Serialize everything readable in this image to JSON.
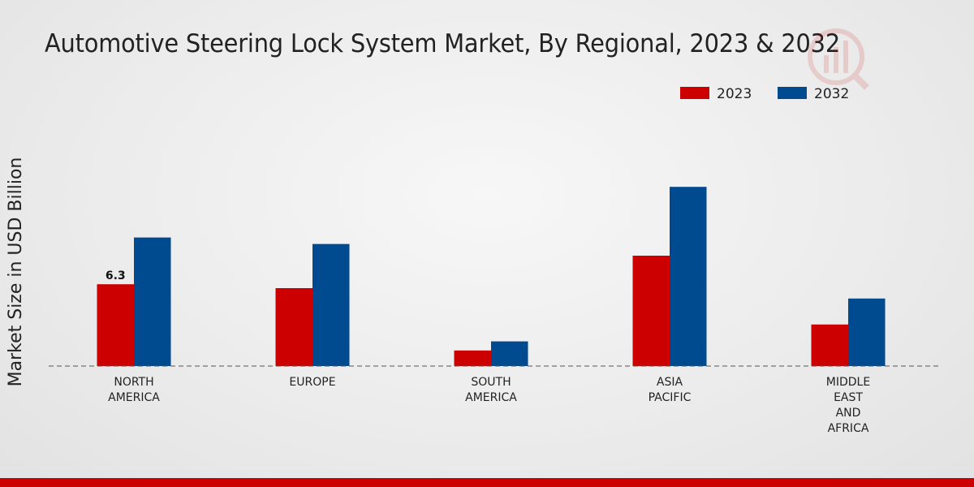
{
  "colors": {
    "series_2023": "#cc0000",
    "series_2032": "#004a8f",
    "bottom_band": "#cc0000"
  },
  "chart_data": {
    "type": "bar",
    "title": "Automotive Steering Lock System Market, By Regional, 2023 & 2032",
    "xlabel": "",
    "ylabel": "Market Size in USD Billion",
    "categories": [
      [
        "NORTH",
        "AMERICA"
      ],
      [
        "EUROPE"
      ],
      [
        "SOUTH",
        "AMERICA"
      ],
      [
        "ASIA",
        "PACIFIC"
      ],
      [
        "MIDDLE",
        "EAST",
        "AND",
        "AFRICA"
      ]
    ],
    "series": [
      {
        "name": "2023",
        "color": "#cc0000",
        "values": [
          6.3,
          6.0,
          1.2,
          8.5,
          3.2
        ]
      },
      {
        "name": "2032",
        "color": "#004a8f",
        "values": [
          9.9,
          9.4,
          1.9,
          13.8,
          5.2
        ]
      }
    ],
    "data_labels": [
      {
        "series": 0,
        "index": 0,
        "text": "6.3"
      }
    ],
    "ylim": [
      0,
      16
    ],
    "legend_position": "top-right",
    "grid": false
  }
}
